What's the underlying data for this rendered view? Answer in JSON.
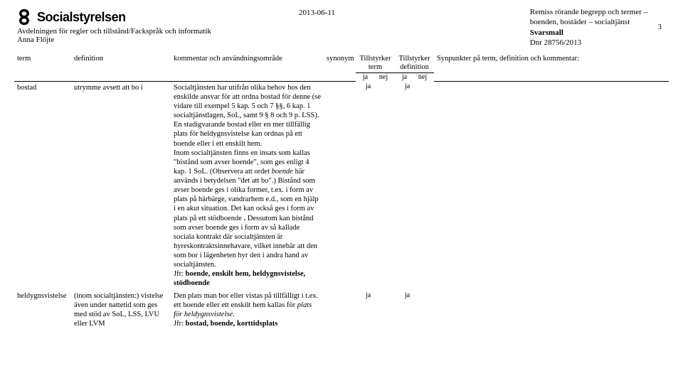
{
  "header": {
    "logo_text": "Socialstyrelsen",
    "department": "Avdelningen för regler och tillstånd/Fackspråk och informatik",
    "author": "Anna Flöjte",
    "date": "2013-06-11",
    "doc_title_line1": "Remiss rörande begrepp och termer –",
    "doc_title_line2": "boenden, bostäder – socialtjänst",
    "doc_sub": "Svarsmall",
    "dnr": "Dnr 28756/2013",
    "page_number": "3"
  },
  "columns": {
    "term": "term",
    "definition": "definition",
    "kommentar": "kommentar och användningsområde",
    "synonym": "synonym",
    "tillstyrker_term": "Tillstyrker term",
    "tillstyrker_definition": "Tillstyrker definition",
    "ja": "ja",
    "nej": "nej",
    "synpunkter": "Synpunkter på term, definition och kommentar:"
  },
  "rows": [
    {
      "term": "bostad",
      "definition": "utrymme avsett att bo i",
      "kommentar": "Socialtjänsten har utifrån olika behov hos den enskilde ansvar för att ordna bostad för denne (se vidare till exempel 5 kap. 5 och 7 §§, 6 kap. 1 socialtjänstlagen, SoL, samt 9 § 8 och 9 p. LSS). En stadigvarande bostad eller en mer tillfällig plats för heldygnsvistelse kan ordnas på ett boende eller i ett enskilt hem.\nInom socialtjänsten finns en insats som kallas \"bistånd som avser boende\", som ges enligt 4 kap. 1 SoL. (Observera att ordet boende här används i betydelsen \"det att bo\".) Bistånd som avser boende ges i olika former, t.ex. i form av plats på härbärge, vandrarhem e.d., som en hjälp i en akut situation. Det kan också ges i form av plats på ett stödboende. Dessutom kan bistånd som avser boende ges i form av så kallade sociala kontrakt där socialtjänsten är hyreskontraktsinnehavare, vilket innebär att den som bor i lägenheten hyr den i andra hand av socialtjänsten.\nJfr: boende, enskilt hem, heldygnsvistelse, stödboende",
      "ts_term": "ja",
      "ts_def": "ja"
    },
    {
      "term": "heldygnsvistelse",
      "definition": "(inom socialtjänsten:) vistelse även under nattetid som ges med stöd av SoL, LSS, LVU eller LVM",
      "kommentar": "Den plats man bor eller vistas på tillfälligt i t.ex. ett boende eller ett enskilt hem kallas för plats för heldygnsvistelse.\nJfr: bostad, boende, korttidsplats",
      "ts_term": "ja",
      "ts_def": "ja"
    }
  ]
}
